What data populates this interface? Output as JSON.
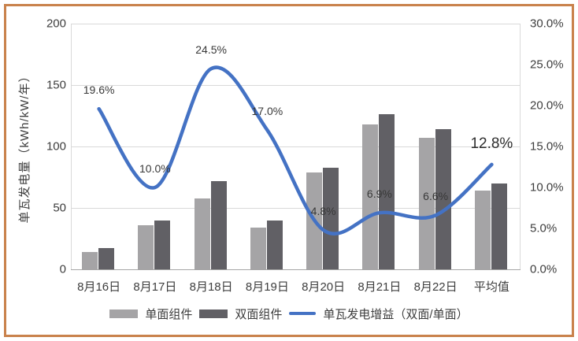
{
  "chart_data": {
    "type": "combo-bar-line",
    "title": "",
    "categories": [
      "8月16日",
      "8月17日",
      "8月18日",
      "8月19日",
      "8月20日",
      "8月21日",
      "8月22日",
      "平均值"
    ],
    "bar_series": [
      {
        "name": "单面组件",
        "color": "#a5a4a6",
        "values": [
          14,
          36,
          58,
          34,
          79,
          118,
          107,
          64
        ]
      },
      {
        "name": "双面组件",
        "color": "#616065",
        "values": [
          17,
          40,
          72,
          40,
          83,
          126,
          114,
          70
        ]
      }
    ],
    "line_series": {
      "name": "单瓦发电增益（双面/单面）",
      "color": "#4472c4",
      "values": [
        19.6,
        10.0,
        24.5,
        17.0,
        4.8,
        6.9,
        6.6,
        12.8
      ],
      "labels": [
        "19.6%",
        "10.0%",
        "24.5%",
        "17.0%",
        "4.8%",
        "6.9%",
        "6.6%",
        "12.8%"
      ],
      "emphasized_label_index": 7
    },
    "y_left": {
      "title": "单瓦发电量（kWh/kW/年）",
      "min": 0,
      "max": 200,
      "tick_values": [
        0,
        50,
        100,
        150,
        200
      ],
      "tick_labels": [
        "0",
        "50",
        "100",
        "150",
        "200"
      ]
    },
    "y_right": {
      "min": 0,
      "max": 30,
      "tick_values": [
        0,
        5,
        10,
        15,
        20,
        25,
        30
      ],
      "tick_labels": [
        "0.0%",
        "5.0%",
        "10.0%",
        "15.0%",
        "20.0%",
        "25.0%",
        "30.0%"
      ]
    },
    "grid": true,
    "legend_position": "bottom"
  },
  "colors": {
    "frame_border": "#c9824c",
    "gridline": "#d9d9d9",
    "axis_line": "#a6a6a6",
    "text": "#3d3d3d",
    "background": "#ffffff"
  }
}
